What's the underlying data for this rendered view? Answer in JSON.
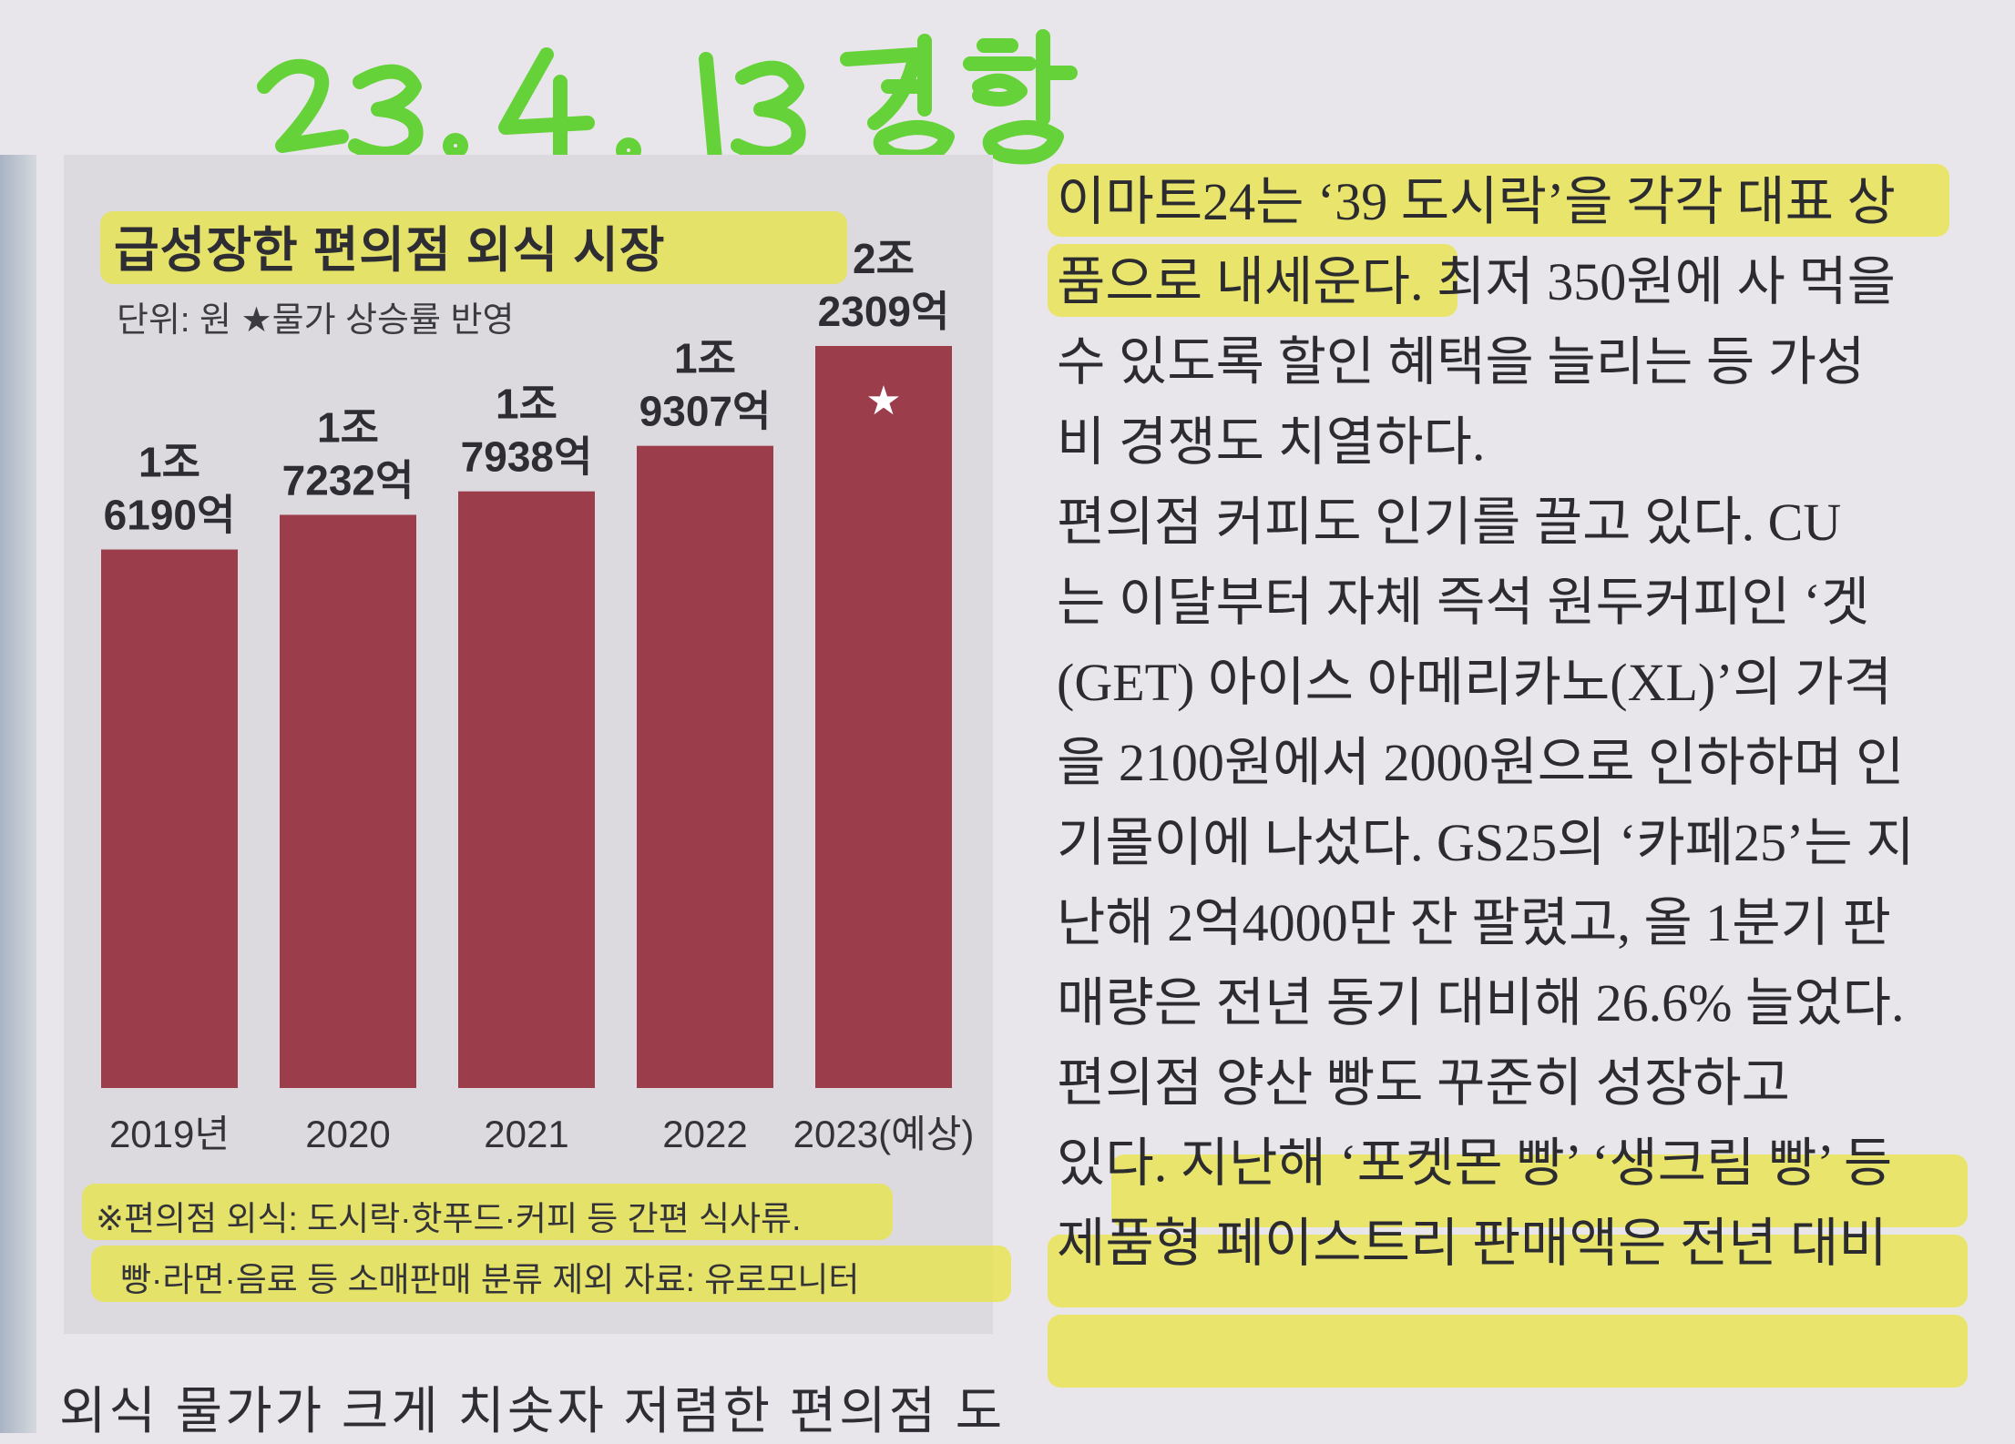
{
  "handwritten_note": "23. 4. 13 경향",
  "chart_data": {
    "type": "bar",
    "title": "급성장한 편의점 외식 시장",
    "unit_note": "단위: 원   ★물가 상승률 반영",
    "categories": [
      "2019년",
      "2020",
      "2021",
      "2022",
      "2023(예상)"
    ],
    "values": [
      1619000000000,
      1723200000000,
      1793800000000,
      1930700000000,
      2230900000000
    ],
    "data_labels": [
      [
        "1조",
        "6190억"
      ],
      [
        "1조",
        "7232억"
      ],
      [
        "1조",
        "7938억"
      ],
      [
        "1조",
        "9307억"
      ],
      [
        "2조",
        "2309억"
      ]
    ],
    "star_marker_index": 4,
    "bar_color": "#9c3d4b",
    "star_symbol": "★",
    "footnote": [
      "※편의점 외식: 도시락·핫푸드·커피 등 간편 식사류.",
      "빵·라면·음료 등 소매판매 분류 제외   자료: 유로모니터"
    ]
  },
  "below_chart_text": "외식 물가가 크게 치솟자 저렴한 편의점 도",
  "article_lines": [
    "이마트24는 ‘39 도시락’을 각각 대표 상",
    "품으로 내세운다. 최저 350원에 사 먹을",
    "수 있도록 할인 혜택을 늘리는 등 가성",
    "비 경쟁도 치열하다.",
    "  편의점 커피도 인기를 끌고 있다. CU",
    "는 이달부터 자체 즉석 원두커피인 ‘겟",
    "(GET) 아이스 아메리카노(XL)’의 가격",
    "을 2100원에서 2000원으로 인하하며 인",
    "기몰이에 나섰다. GS25의 ‘카페25’는 지",
    "난해 2억4000만 잔 팔렸고, 올 1분기 판",
    "매량은 전년 동기 대비해 26.6% 늘었다.",
    "  편의점 양산 빵도 꾸준히 성장하고",
    "있다. 지난해 ‘포켓몬 빵’ ‘생크림 빵’ 등",
    "제품형 페이스트리 판매액은 전년 대비"
  ],
  "highlight_color": "#e9e43c",
  "handwriting_color": "#66d23a"
}
